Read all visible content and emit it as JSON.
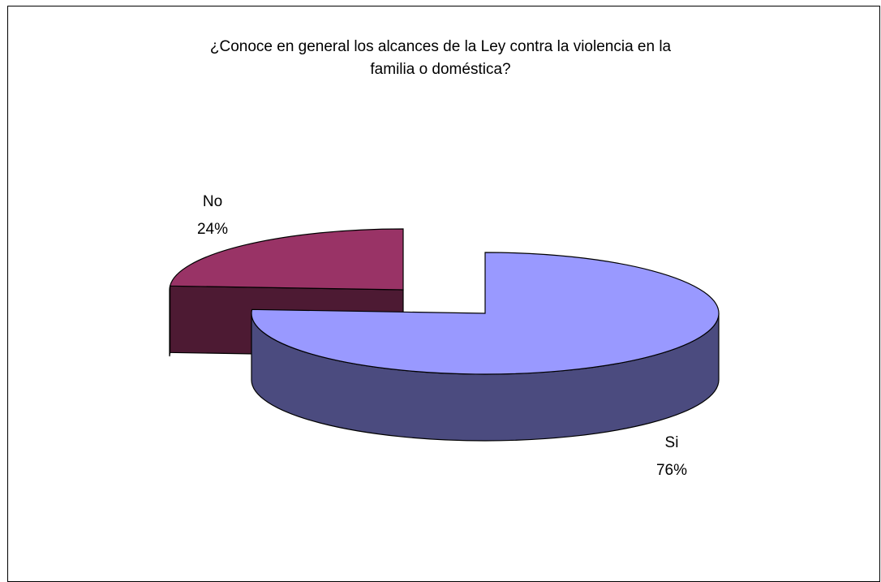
{
  "chart_data": {
    "type": "pie",
    "title_lines": [
      "¿Conoce en general los alcances de la Ley contra la violencia en la",
      "familia o doméstica?"
    ],
    "slices": [
      {
        "label": "Si",
        "value": 76,
        "value_label": "76%",
        "top_color": "#9999ff",
        "side_color": "#4b4b7f"
      },
      {
        "label": "No",
        "value": 24,
        "value_label": "24%",
        "top_color": "#993366",
        "side_color": "#4d1a33"
      }
    ],
    "exploded": true,
    "three_d": true
  }
}
